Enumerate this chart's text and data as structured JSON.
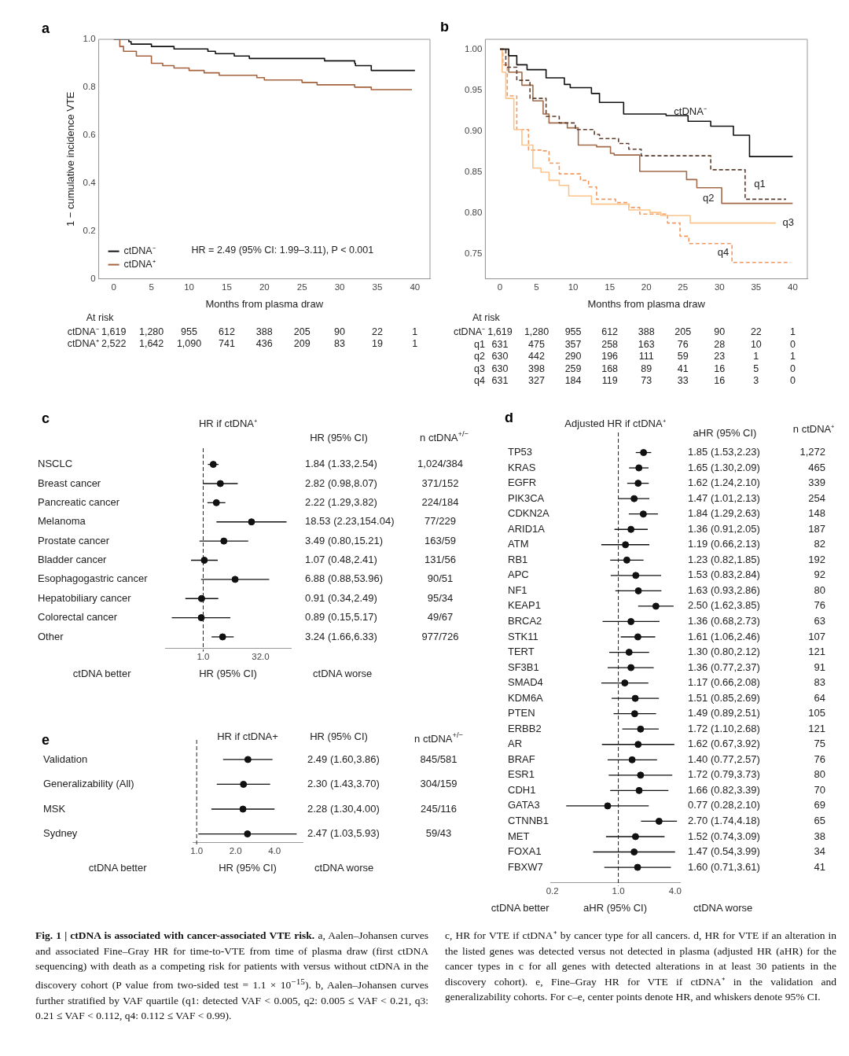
{
  "chart_data": [
    {
      "type": "step",
      "xlabel": "Months from plasma draw",
      "ylabel": "1 − cumulative incidence VTE",
      "xlim": [
        -2,
        42
      ],
      "xticks": [
        0,
        5,
        10,
        15,
        20,
        25,
        30,
        35,
        40
      ],
      "ylim": [
        0,
        1
      ],
      "yticks": [
        0,
        0.2,
        0.4,
        0.6,
        0.8,
        {
          "value": 1,
          "label": "1.0"
        }
      ],
      "legend": "bottom left",
      "series": [
        {
          "name": "ctDNA⁻",
          "color": "#111111",
          "x": [
            0,
            2,
            2.3,
            5,
            8,
            10,
            12.5,
            13.5,
            16,
            18,
            25,
            28,
            32,
            32.1,
            34.2,
            40
          ],
          "values": [
            1,
            0.99,
            0.98,
            0.97,
            0.96,
            0.96,
            0.95,
            0.94,
            0.93,
            0.92,
            0.92,
            0.91,
            0.9,
            0.89,
            0.87,
            0.87
          ]
        },
        {
          "name": "ctDNA⁺",
          "color": "#a5623d",
          "x": [
            0,
            0.8,
            1.3,
            3,
            5,
            6.5,
            8,
            10,
            12,
            14,
            16,
            19,
            20,
            25,
            27,
            30,
            32,
            34.2,
            39.6
          ],
          "values": [
            1,
            0.97,
            0.95,
            0.93,
            0.9,
            0.89,
            0.88,
            0.87,
            0.86,
            0.85,
            0.85,
            0.84,
            0.83,
            0.82,
            0.81,
            0.81,
            0.8,
            0.79,
            0.79
          ]
        }
      ],
      "annotations": [
        "a",
        "HR = 2.49 (95% CI: 1.99–3.11), P < 0.001",
        "At risk",
        "ctDNA⁻ 1,619 1,280 955 612 388 205 90 22 1",
        "ctDNA⁺ 2,522 1,642 1,090 741 436 209 83 19 1"
      ]
    },
    {
      "type": "step",
      "xlabel": "Months from plasma draw",
      "xlim": [
        -2,
        42
      ],
      "xticks": [
        0,
        5,
        10,
        15,
        20,
        25,
        30,
        35,
        40
      ],
      "ylim": [
        0.72,
        1.012
      ],
      "yticks": [
        {
          "value": 0.75,
          "label": "0.75"
        },
        {
          "value": 0.8,
          "label": "0.80"
        },
        {
          "value": 0.85,
          "label": "0.85"
        },
        {
          "value": 0.9,
          "label": "0.90"
        },
        {
          "value": 0.95,
          "label": "0.95"
        },
        {
          "value": 1,
          "label": "1.00"
        }
      ],
      "series": [
        {
          "name": "ctDNA⁻",
          "color": "#111111",
          "x": [
            0,
            1.2,
            2.3,
            3.7,
            6.3,
            8.8,
            9.6,
            12.5,
            13.6,
            16.9,
            22.7,
            25.7,
            28.8,
            31.9,
            34.1,
            40
          ],
          "values": [
            1,
            0.992,
            0.981,
            0.975,
            0.965,
            0.957,
            0.953,
            0.946,
            0.935,
            0.921,
            0.919,
            0.912,
            0.906,
            0.895,
            0.869,
            0.869
          ]
        },
        {
          "name": "q1",
          "color": "#5c3d2e",
          "line_style": "dashed",
          "x": [
            0,
            0.8,
            2.3,
            4.1,
            6.3,
            8.1,
            10.3,
            12.9,
            13.6,
            16.2,
            17.6,
            19.3,
            28.8,
            33.5,
            39.1
          ],
          "values": [
            1,
            0.978,
            0.962,
            0.94,
            0.918,
            0.91,
            0.902,
            0.896,
            0.891,
            0.885,
            0.878,
            0.87,
            0.853,
            0.817,
            0.817
          ]
        },
        {
          "name": "q2",
          "color": "#a36a4a",
          "x": [
            0,
            1.2,
            3,
            4.5,
            5.9,
            6.7,
            9.2,
            10.7,
            13.2,
            15.1,
            15.6,
            19.1,
            25.5,
            26.9,
            30.3,
            40
          ],
          "values": [
            1,
            0.972,
            0.956,
            0.937,
            0.921,
            0.91,
            0.904,
            0.883,
            0.881,
            0.873,
            0.871,
            0.851,
            0.841,
            0.831,
            0.812,
            0.812
          ]
        },
        {
          "name": "q3",
          "color": "#fcc38a",
          "x": [
            0,
            0.3,
            0.8,
            1.9,
            3,
            4.5,
            5.6,
            6.7,
            8.1,
            9.4,
            12.5,
            17.6,
            20.5,
            22,
            26,
            37.7
          ],
          "values": [
            1,
            0.972,
            0.94,
            0.902,
            0.883,
            0.855,
            0.85,
            0.84,
            0.834,
            0.821,
            0.811,
            0.804,
            0.801,
            0.797,
            0.788,
            0.788
          ]
        },
        {
          "name": "q4",
          "color": "#f39a63",
          "line_style": "dashed",
          "x": [
            0,
            0.4,
            1,
            2.3,
            3.9,
            5.6,
            6.7,
            8.1,
            11,
            12.1,
            13.2,
            15.8,
            17.6,
            19.1,
            22.9,
            24.6,
            25.8,
            31.7,
            39.7
          ],
          "values": [
            1,
            0.981,
            0.943,
            0.902,
            0.877,
            0.876,
            0.861,
            0.848,
            0.84,
            0.832,
            0.817,
            0.813,
            0.807,
            0.799,
            0.788,
            0.772,
            0.763,
            0.74,
            0.74
          ]
        }
      ],
      "annotations": [
        "b",
        "At risk",
        "ctDNA⁻ 1,619 1,280 955 612 388 205 90 22 1",
        "q1 631 475 357 258 163 76 28 10 0",
        "q2 630 442 290 196 111 59 23 1 1",
        "q3 630 398 259 168 89 41 16 5 0",
        "q4 631 327 184 119 73 33 16 3 0"
      ]
    },
    {
      "type": "scatter",
      "orientation": "horizontal",
      "title": "HR if ctDNA⁺",
      "xlabel": "HR (95% CI)",
      "log": "x",
      "xlim": [
        0.1,
        200
      ],
      "xticks": [
        {
          "value": 1,
          "label": "1.0"
        },
        {
          "value": 32,
          "label": "32.0"
        }
      ],
      "marker": "circle",
      "color": "#111111",
      "categories": [
        "NSCLC",
        "Breast cancer",
        "Pancreatic cancer",
        "Melanoma",
        "Prostate cancer",
        "Bladder cancer",
        "Esophagogastric cancer",
        "Hepatobiliary cancer",
        "Colorectal cancer",
        "Other"
      ],
      "values": [
        1.84,
        2.82,
        2.22,
        18.53,
        3.49,
        1.07,
        6.88,
        0.91,
        0.89,
        3.24
      ],
      "errors": [
        [
          1.33,
          2.54
        ],
        [
          0.98,
          8.07
        ],
        [
          1.29,
          3.82
        ],
        [
          2.23,
          154.04
        ],
        [
          0.8,
          15.21
        ],
        [
          0.48,
          2.41
        ],
        [
          0.88,
          53.96
        ],
        [
          0.34,
          2.49
        ],
        [
          0.15,
          5.17
        ],
        [
          1.66,
          6.33
        ]
      ],
      "ref_lines": [
        {
          "axis": "x",
          "value": 1,
          "line_style": "dashed"
        }
      ],
      "annotations": [
        "c",
        "HR (95% CI)",
        "n ctDNA$^{+/−}$",
        "ctDNA better",
        "ctDNA worse",
        "1.84 (1.33,2.54)",
        "2.82 (0.98,8.07)",
        "2.22 (1.29,3.82)",
        "18.53 (2.23,154.04)",
        "3.49 (0.80,15.21)",
        "1.07 (0.48,2.41)",
        "6.88 (0.88,53.96)",
        "0.91 (0.34,2.49)",
        "0.89 (0.15,5.17)",
        "3.24 (1.66,6.33)",
        "1,024/384",
        "371/152",
        "224/184",
        "77/229",
        "163/59",
        "131/56",
        "90/51",
        "95/34",
        "49/67",
        "977/726"
      ]
    },
    {
      "type": "scatter",
      "orientation": "horizontal",
      "title": "Adjusted HR if ctDNA⁺",
      "xlabel": "aHR (95% CI)",
      "log": "x",
      "xlim": [
        0.19,
        4.5
      ],
      "xticks": [
        {
          "value": 0.2,
          "label": "0.2"
        },
        {
          "value": 1,
          "label": "1.0"
        },
        {
          "value": 4,
          "label": "4.0"
        }
      ],
      "marker": "circle",
      "color": "#111111",
      "categories": [
        "TP53",
        "KRAS",
        "EGFR",
        "PIK3CA",
        "CDKN2A",
        "ARID1A",
        "ATM",
        "RB1",
        "APC",
        "NF1",
        "KEAP1",
        "BRCA2",
        "STK11",
        "TERT",
        "SF3B1",
        "SMAD4",
        "KDM6A",
        "PTEN",
        "ERBB2",
        "AR",
        "BRAF",
        "ESR1",
        "CDH1",
        "GATA3",
        "CTNNB1",
        "MET",
        "FOXA1",
        "FBXW7"
      ],
      "values": [
        1.85,
        1.65,
        1.62,
        1.47,
        1.84,
        1.36,
        1.19,
        1.23,
        1.53,
        1.63,
        2.5,
        1.36,
        1.61,
        1.3,
        1.36,
        1.17,
        1.51,
        1.49,
        1.72,
        1.62,
        1.4,
        1.72,
        1.66,
        0.77,
        2.7,
        1.52,
        1.47,
        1.6
      ],
      "errors": [
        [
          1.53,
          2.23
        ],
        [
          1.3,
          2.09
        ],
        [
          1.24,
          2.1
        ],
        [
          1.01,
          2.13
        ],
        [
          1.29,
          2.63
        ],
        [
          0.91,
          2.05
        ],
        [
          0.66,
          2.13
        ],
        [
          0.82,
          1.85
        ],
        [
          0.83,
          2.84
        ],
        [
          0.93,
          2.86
        ],
        [
          1.62,
          3.85
        ],
        [
          0.68,
          2.73
        ],
        [
          1.06,
          2.46
        ],
        [
          0.8,
          2.12
        ],
        [
          0.77,
          2.37
        ],
        [
          0.66,
          2.08
        ],
        [
          0.85,
          2.69
        ],
        [
          0.89,
          2.51
        ],
        [
          1.1,
          2.68
        ],
        [
          0.67,
          3.92
        ],
        [
          0.77,
          2.57
        ],
        [
          0.79,
          3.73
        ],
        [
          0.82,
          3.39
        ],
        [
          0.28,
          2.1
        ],
        [
          1.74,
          4.18
        ],
        [
          0.74,
          3.09
        ],
        [
          0.54,
          3.99
        ],
        [
          0.71,
          3.61
        ]
      ],
      "ref_lines": [
        {
          "axis": "x",
          "value": 1,
          "line_style": "dashed"
        }
      ],
      "annotations": [
        "d",
        "aHR (95% CI)",
        "n ctDNA⁺",
        "ctDNA better",
        "ctDNA worse",
        "1.85 (1.53,2.23)",
        "1.65 (1.30,2.09)",
        "1.62 (1.24,2.10)",
        "1.47 (1.01,2.13)",
        "1.84 (1.29,2.63)",
        "1.36 (0.91,2.05)",
        "1.19 (0.66,2.13)",
        "1.23 (0.82,1.85)",
        "1.53 (0.83,2.84)",
        "1.63 (0.93,2.86)",
        "2.50 (1.62,3.85)",
        "1.36 (0.68,2.73)",
        "1.61 (1.06,2.46)",
        "1.30 (0.80,2.12)",
        "1.36 (0.77,2.37)",
        "1.17 (0.66,2.08)",
        "1.51 (0.85,2.69)",
        "1.49 (0.89,2.51)",
        "1.72 (1.10,2.68)",
        "1.62 (0.67,3.92)",
        "1.40 (0.77,2.57)",
        "1.72 (0.79,3.73)",
        "1.66 (0.82,3.39)",
        "0.77 (0.28,2.10)",
        "2.70 (1.74,4.18)",
        "1.52 (0.74,3.09)",
        "1.47 (0.54,3.99)",
        "1.60 (0.71,3.61)",
        "1,272",
        "465",
        "339",
        "254",
        "148",
        "187",
        "82",
        "192",
        "92",
        "80",
        "76",
        "63",
        "107",
        "121",
        "91",
        "83",
        "64",
        "105",
        "121",
        "75",
        "76",
        "80",
        "70",
        "69",
        "65",
        "38",
        "34",
        "41"
      ]
    },
    {
      "type": "scatter",
      "orientation": "horizontal",
      "title": "HR if ctDNA+",
      "xlabel": "HR (95% CI)",
      "log": "x",
      "xlim": [
        0.93,
        6.6
      ],
      "xticks": [
        {
          "value": 1,
          "label": "1.0"
        },
        {
          "value": 2,
          "label": "2.0"
        },
        {
          "value": 4,
          "label": "4.0"
        }
      ],
      "marker": "circle",
      "color": "#111111",
      "categories": [
        "Validation",
        "Generalizability (All)",
        "MSK",
        "Sydney"
      ],
      "values": [
        2.49,
        2.3,
        2.28,
        2.47
      ],
      "errors": [
        [
          1.6,
          3.86
        ],
        [
          1.43,
          3.7
        ],
        [
          1.3,
          4.0
        ],
        [
          1.03,
          5.93
        ]
      ],
      "ref_lines": [
        {
          "axis": "x",
          "value": 1,
          "line_style": "dashed"
        }
      ],
      "annotations": [
        "e",
        "HR (95% CI)",
        "n ctDNA$^{+/−}$",
        "ctDNA better",
        "ctDNA worse",
        "Fig. 1 | ctDNA is associated with cancer-associated VTE risk.",
        "a, Aalen–Johansen curves and associated Fine–Gray HR for time-to-VTE from time of plasma draw (first ctDNA sequencing) with death as a competing risk for patients with versus without ctDNA in the discovery cohort (P value from two-sided test = 1.1 × 10$^{−15}$). b, Aalen–Johansen curves further stratified by VAF quartile (q1: detected VAF < 0.005, q2: 0.005 ≤ VAF < 0.21, q3: 0.21 ≤ VAF < 0.112, q4: 0.112 ≤ VAF < 0.99).",
        "c, HR for VTE if ctDNA⁺ by cancer type for all cancers. d, HR for VTE if an alteration in the listed genes was detected versus not detected in plasma (adjusted HR (aHR) for the cancer types in c for all genes with detected alterations in at least 30 patients in the discovery cohort). e, Fine–Gray HR for VTE if ctDNA⁺ in the validation and generalizability cohorts. For c–e, center points denote HR, and whiskers denote 95% CI.",
        "2.49 (1.60,3.86)",
        "2.30 (1.43,3.70)",
        "2.28 (1.30,4.00)",
        "2.47 (1.03,5.93)",
        "845/581",
        "304/159",
        "245/116",
        "59/43"
      ]
    }
  ]
}
